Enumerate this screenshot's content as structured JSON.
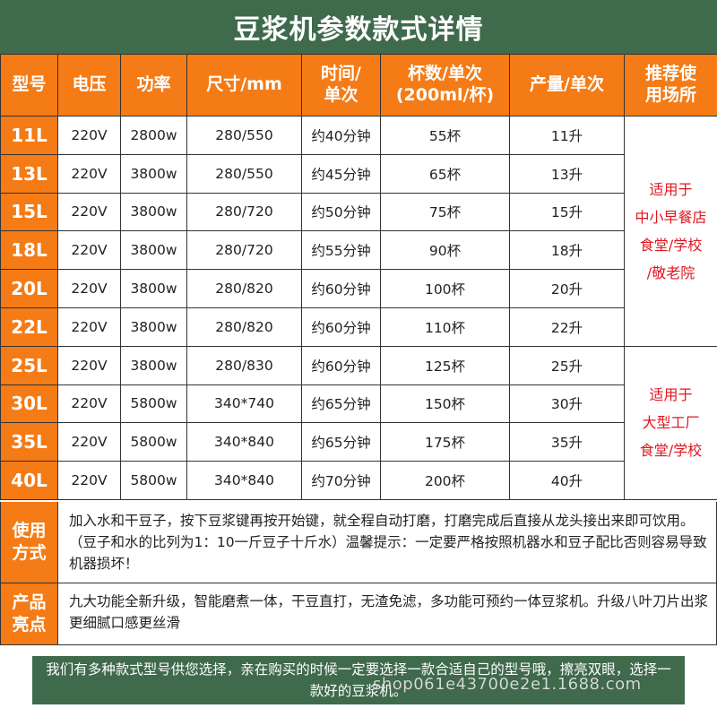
{
  "title": "豆浆机参数款式详情",
  "columns": [
    "型号",
    "电压",
    "功率",
    "尺寸/mm",
    "时间/\n单次",
    "杯数/单次\n(200ml/杯)",
    "产量/单次",
    "推荐使\n用场所"
  ],
  "rows": [
    {
      "model": "11L",
      "voltage": "220V",
      "power": "2800w",
      "size": "280/550",
      "time": "约40分钟",
      "cups": "55杯",
      "output": "11升"
    },
    {
      "model": "13L",
      "voltage": "220V",
      "power": "3800w",
      "size": "280/550",
      "time": "约45分钟",
      "cups": "65杯",
      "output": "13升"
    },
    {
      "model": "15L",
      "voltage": "220V",
      "power": "3800w",
      "size": "280/720",
      "time": "约50分钟",
      "cups": "75杯",
      "output": "15升"
    },
    {
      "model": "18L",
      "voltage": "220V",
      "power": "3800w",
      "size": "280/720",
      "time": "约55分钟",
      "cups": "90杯",
      "output": "18升"
    },
    {
      "model": "20L",
      "voltage": "220V",
      "power": "3800w",
      "size": "280/820",
      "time": "约60分钟",
      "cups": "100杯",
      "output": "20升"
    },
    {
      "model": "22L",
      "voltage": "220V",
      "power": "3800w",
      "size": "280/820",
      "time": "约60分钟",
      "cups": "110杯",
      "output": "22升"
    },
    {
      "model": "25L",
      "voltage": "220V",
      "power": "3800w",
      "size": "280/830",
      "time": "约60分钟",
      "cups": "125杯",
      "output": "25升"
    },
    {
      "model": "30L",
      "voltage": "220V",
      "power": "5800w",
      "size": "340*740",
      "time": "约65分钟",
      "cups": "150杯",
      "output": "30升"
    },
    {
      "model": "35L",
      "voltage": "220V",
      "power": "5800w",
      "size": "340*840",
      "time": "约65分钟",
      "cups": "175杯",
      "output": "35升"
    },
    {
      "model": "40L",
      "voltage": "220V",
      "power": "5800w",
      "size": "340*840",
      "time": "约70分钟",
      "cups": "200杯",
      "output": "40升"
    }
  ],
  "usage_groups": [
    {
      "text": "适用于\n中小早餐店\n食堂/学校\n/敬老院"
    },
    {
      "text": "适用于\n大型工厂\n食堂/学校"
    }
  ],
  "usage": {
    "label": "使用\n方式",
    "text": "加入水和干豆子，按下豆浆键再按开始键，就全程自动打磨，打磨完成后直接从龙头接出来即可饮用。（豆子和水的比列为1：10一斤豆子十斤水）温馨提示：一定要严格按照机器水和豆子配比否则容易导致机器损坏！"
  },
  "features": {
    "label": "产品\n亮点",
    "text": "九大功能全新升级，智能磨煮一体，干豆直打，无渣免滤，多功能可预约一体豆浆机。升级八叶刀片出浆更细腻口感更丝滑"
  },
  "footer": "我们有多种款式型号供您选择，亲在购买的时候一定要选择一款合适自己的型号哦，擦亮双眼，选择一款好的豆浆机。",
  "watermark": "shop061e43700e2e1.1688.com",
  "colors": {
    "header_green": "#3f6a4c",
    "accent_orange": "#f47b16",
    "usage_red": "#e0161e"
  }
}
